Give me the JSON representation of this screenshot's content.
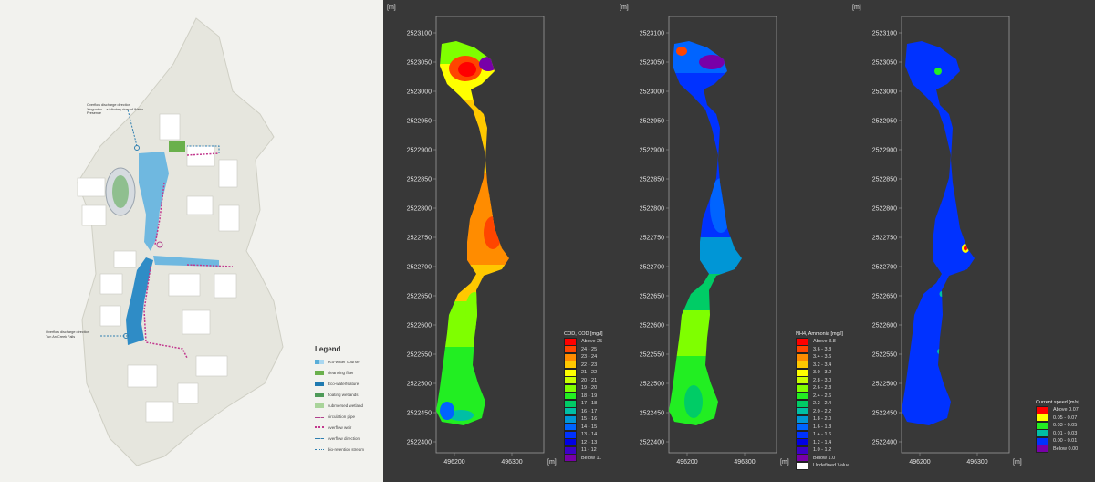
{
  "site_plan": {
    "annotations": {
      "overflow_top": "Overflow discharge direction\nXinguotou – a tributary river of Water Presence",
      "overflow_bottom": "Overflow discharge direction\nTun An Creek Falls"
    },
    "legend": {
      "title": "Legend",
      "items": [
        {
          "label": "eco-water course",
          "color": "#5aaed8",
          "style": "split"
        },
        {
          "label": "cleansing filter",
          "color": "#6ab04c",
          "style": "solid"
        },
        {
          "label": "Eco-waterfeature",
          "color": "#1f7ab0",
          "style": "solid"
        },
        {
          "label": "floating wetlands",
          "color": "#4e9a58",
          "style": "solid"
        },
        {
          "label": "submersed wetland",
          "color": "#a9d49a",
          "style": "solid"
        },
        {
          "label": "circulation pipe",
          "color": "#b0408c",
          "style": "pipe"
        },
        {
          "label": "overflow weir",
          "color": "#c2388e",
          "style": "weir"
        },
        {
          "label": "overflow direction",
          "color": "#2f7fb0",
          "style": "arrow"
        },
        {
          "label": "bio-retention stream",
          "color": "#2f7fb0",
          "style": "dots"
        }
      ]
    }
  },
  "maps": [
    {
      "id": "cod",
      "y_unit": "[m]",
      "x_unit": "[m]",
      "y_ticks": [
        "2523100",
        "2523050",
        "2523000",
        "2522950",
        "2522900",
        "2522850",
        "2522800",
        "2522750",
        "2522700",
        "2522650",
        "2522600",
        "2522550",
        "2522500",
        "2522450",
        "2522400"
      ],
      "x_ticks": [
        "496200",
        "496300"
      ],
      "colorbar": {
        "title": "COD, COD [mg/l]",
        "rows": [
          {
            "label": "Above 25",
            "color": "#ff0000"
          },
          {
            "label": "24 - 25",
            "color": "#ff4500"
          },
          {
            "label": "23 - 24",
            "color": "#ff8c00"
          },
          {
            "label": "22 - 23",
            "color": "#ffc800"
          },
          {
            "label": "21 - 22",
            "color": "#ffff00"
          },
          {
            "label": "20 - 21",
            "color": "#c8ff00"
          },
          {
            "label": "19 - 20",
            "color": "#7fff00"
          },
          {
            "label": "18 - 19",
            "color": "#22ee22"
          },
          {
            "label": "17 - 18",
            "color": "#00cc66"
          },
          {
            "label": "16 - 17",
            "color": "#00bfa5"
          },
          {
            "label": "15 - 16",
            "color": "#0096d6"
          },
          {
            "label": "14 - 15",
            "color": "#0064ff"
          },
          {
            "label": "13 - 14",
            "color": "#0032ff"
          },
          {
            "label": "12 - 13",
            "color": "#0000e6"
          },
          {
            "label": "11 - 12",
            "color": "#3c00c8"
          },
          {
            "label": "Below 11",
            "color": "#7800a8"
          }
        ]
      }
    },
    {
      "id": "nh4",
      "y_unit": "[m]",
      "x_unit": "[m]",
      "y_ticks": [
        "2523100",
        "2523050",
        "2523000",
        "2522950",
        "2522900",
        "2522850",
        "2522800",
        "2522750",
        "2522700",
        "2522650",
        "2522600",
        "2522550",
        "2522500",
        "2522450",
        "2522400"
      ],
      "x_ticks": [
        "496200",
        "496300"
      ],
      "colorbar": {
        "title": "NH4, Ammonia [mg/l]",
        "rows": [
          {
            "label": "Above 3.8",
            "color": "#ff0000"
          },
          {
            "label": "3.6 - 3.8",
            "color": "#ff4500"
          },
          {
            "label": "3.4 - 3.6",
            "color": "#ff8c00"
          },
          {
            "label": "3.2 - 3.4",
            "color": "#ffc800"
          },
          {
            "label": "3.0 - 3.2",
            "color": "#ffff00"
          },
          {
            "label": "2.8 - 3.0",
            "color": "#c8ff00"
          },
          {
            "label": "2.6 - 2.8",
            "color": "#7fff00"
          },
          {
            "label": "2.4 - 2.6",
            "color": "#22ee22"
          },
          {
            "label": "2.2 - 2.4",
            "color": "#00cc66"
          },
          {
            "label": "2.0 - 2.2",
            "color": "#00bfa5"
          },
          {
            "label": "1.8 - 2.0",
            "color": "#0096d6"
          },
          {
            "label": "1.6 - 1.8",
            "color": "#0064ff"
          },
          {
            "label": "1.4 - 1.6",
            "color": "#0032ff"
          },
          {
            "label": "1.2 - 1.4",
            "color": "#0000e6"
          },
          {
            "label": "1.0 - 1.2",
            "color": "#3c00c8"
          },
          {
            "label": "Below 1.0",
            "color": "#7800a8"
          },
          {
            "label": "Undefined Value",
            "color": "#ffffff"
          }
        ]
      }
    },
    {
      "id": "speed",
      "y_unit": "[m]",
      "x_unit": "[m]",
      "y_ticks": [
        "2523100",
        "2523050",
        "2523000",
        "2522950",
        "2522900",
        "2522850",
        "2522800",
        "2522750",
        "2522700",
        "2522650",
        "2522600",
        "2522550",
        "2522500",
        "2522450",
        "2522400"
      ],
      "x_ticks": [
        "496200",
        "496300"
      ],
      "colorbar": {
        "title": "Current speed [m/s]",
        "rows": [
          {
            "label": "Above 0.07",
            "color": "#ff0000"
          },
          {
            "label": "0.05 - 0.07",
            "color": "#ffff00"
          },
          {
            "label": "0.03 - 0.05",
            "color": "#22ee22"
          },
          {
            "label": "0.01 - 0.03",
            "color": "#00bfa5"
          },
          {
            "label": "0.00 - 0.01",
            "color": "#0032ff"
          },
          {
            "label": "Below 0.00",
            "color": "#7800a8"
          }
        ]
      }
    }
  ]
}
